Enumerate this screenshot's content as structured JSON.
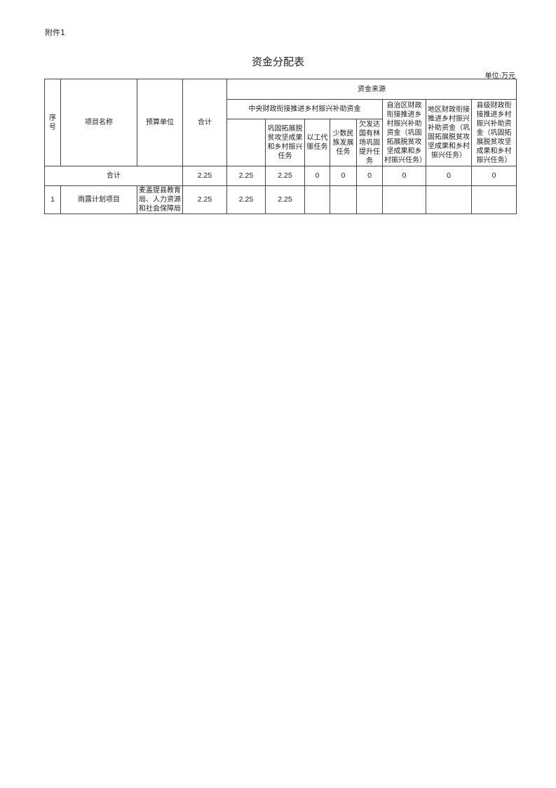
{
  "attachment_label": "附件1",
  "title": "资金分配表",
  "unit": "单位:万元",
  "headers": {
    "seq": "序号",
    "project_name": "项目名称",
    "budget_unit": "预算单位",
    "total": "合计",
    "fund_source": "资金来源",
    "central": "中央财政衔接推进乡村振兴补助资金",
    "central_sub1": "巩固拓展脱贫攻坚成果和乡村振兴任务",
    "central_sub2": "以工代赈任务",
    "central_sub3": "少数民族发展任务",
    "central_sub4": "欠发达国有林场巩固提升任务",
    "region": "自治区财政衔接推进乡村振兴补助资金（巩固拓展脱贫攻坚成果和乡村振兴任务）",
    "prefecture": "地区财政衔接推进乡村振兴补助资金（巩固拓展脱贫攻坚成果和乡村振兴任务）",
    "county": "县级财政衔接推进乡村振兴补助资金（巩固拓展脱贫攻坚成果和乡村振兴任务）"
  },
  "total_row": {
    "label": "合计",
    "total": "2.25",
    "central": "2.25",
    "c1": "2.25",
    "c2": "0",
    "c3": "0",
    "c4": "0",
    "region": "0",
    "prefecture": "0",
    "county": "0"
  },
  "rows": [
    {
      "seq": "1",
      "name": "雨露计划项目",
      "unit": "麦盖提县教育局、人力资源和社会保障局",
      "total": "2.25",
      "central": "2.25",
      "c1": "2.25",
      "c2": "",
      "c3": "",
      "c4": "",
      "region": "",
      "prefecture": "",
      "county": ""
    }
  ]
}
